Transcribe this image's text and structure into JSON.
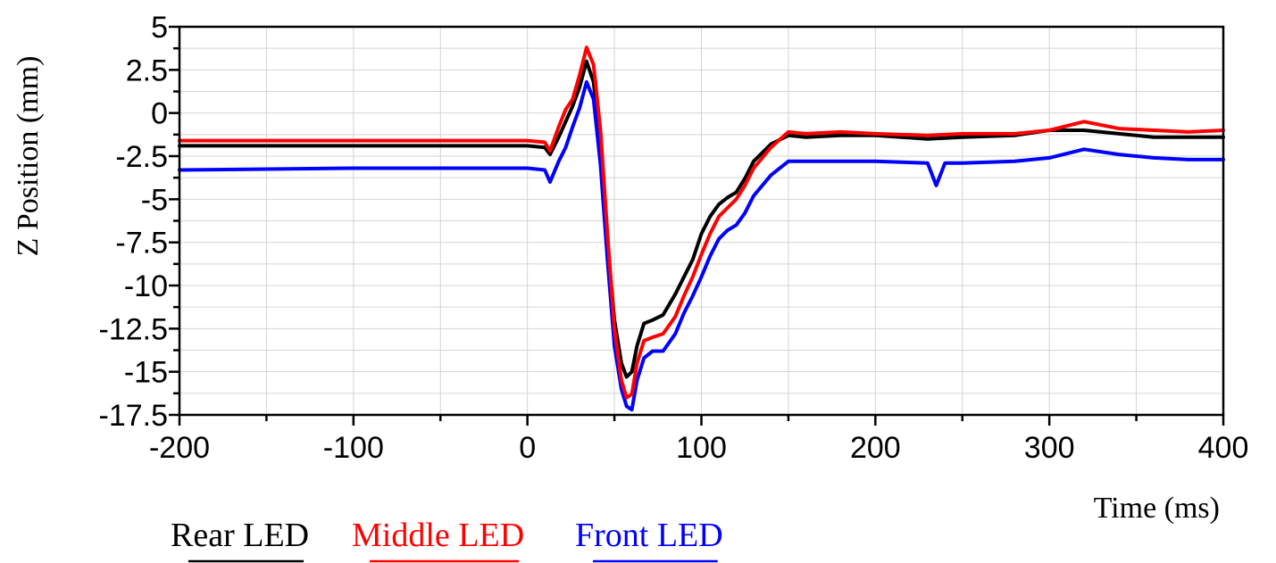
{
  "chart_data": {
    "type": "line",
    "title": "",
    "xlabel": "Time (ms)",
    "ylabel": "Z Position (mm)",
    "xlim": [
      -200,
      400
    ],
    "ylim": [
      -17.5,
      5
    ],
    "x_ticks": [
      -200,
      -100,
      0,
      100,
      200,
      300,
      400
    ],
    "y_ticks": [
      5,
      2.5,
      0,
      -2.5,
      -5,
      -7.5,
      -10,
      -12.5,
      -15,
      -17.5
    ],
    "x_tick_labels": [
      "-200",
      "-100",
      "0",
      "100",
      "200",
      "300",
      "400"
    ],
    "y_tick_labels": [
      "5",
      "2.5",
      "0",
      "-2.5",
      "-5",
      "-7.5",
      "-10",
      "-12.5",
      "-15",
      "-17.5"
    ],
    "grid": true,
    "legend_position": "bottom-left",
    "series": [
      {
        "name": "Rear LED",
        "color": "#000000",
        "x": [
          -200,
          -100,
          0,
          10,
          13,
          18,
          22,
          26,
          30,
          34,
          38,
          42,
          46,
          50,
          54,
          57,
          60,
          63,
          67,
          72,
          78,
          85,
          90,
          95,
          100,
          105,
          110,
          115,
          120,
          125,
          130,
          140,
          150,
          160,
          180,
          200,
          230,
          250,
          280,
          300,
          320,
          340,
          360,
          380,
          400
        ],
        "y": [
          -1.9,
          -1.9,
          -1.9,
          -2.0,
          -2.4,
          -1.4,
          -0.5,
          0.4,
          1.5,
          3.0,
          1.8,
          -2.0,
          -7.5,
          -12.0,
          -14.5,
          -15.3,
          -15.0,
          -13.5,
          -12.2,
          -12.0,
          -11.7,
          -10.5,
          -9.5,
          -8.5,
          -7.0,
          -6.0,
          -5.3,
          -4.9,
          -4.6,
          -3.8,
          -2.8,
          -1.8,
          -1.3,
          -1.4,
          -1.3,
          -1.3,
          -1.5,
          -1.4,
          -1.3,
          -1.0,
          -1.0,
          -1.2,
          -1.4,
          -1.4,
          -1.4
        ]
      },
      {
        "name": "Middle LED",
        "color": "#ff0000",
        "x": [
          -200,
          -100,
          0,
          10,
          13,
          18,
          22,
          26,
          30,
          34,
          38,
          42,
          46,
          50,
          54,
          57,
          60,
          63,
          67,
          72,
          78,
          85,
          90,
          95,
          100,
          105,
          110,
          115,
          120,
          125,
          130,
          140,
          150,
          160,
          180,
          200,
          230,
          250,
          280,
          300,
          320,
          340,
          360,
          380,
          400
        ],
        "y": [
          -1.6,
          -1.6,
          -1.6,
          -1.7,
          -2.2,
          -0.8,
          0.2,
          0.8,
          2.2,
          3.8,
          2.8,
          -1.0,
          -7.0,
          -12.5,
          -15.5,
          -16.5,
          -16.3,
          -14.5,
          -13.2,
          -13.0,
          -12.8,
          -11.8,
          -10.6,
          -9.5,
          -8.2,
          -7.0,
          -6.0,
          -5.5,
          -5.0,
          -4.2,
          -3.2,
          -2.0,
          -1.1,
          -1.2,
          -1.1,
          -1.2,
          -1.3,
          -1.2,
          -1.2,
          -1.0,
          -0.5,
          -0.9,
          -1.0,
          -1.1,
          -1.0
        ]
      },
      {
        "name": "Front LED",
        "color": "#0000ff",
        "x": [
          -200,
          -100,
          0,
          10,
          13,
          18,
          22,
          26,
          30,
          34,
          38,
          42,
          46,
          50,
          54,
          57,
          60,
          63,
          67,
          72,
          78,
          85,
          90,
          95,
          100,
          105,
          110,
          115,
          120,
          125,
          130,
          140,
          150,
          160,
          180,
          200,
          230,
          235,
          240,
          250,
          280,
          300,
          320,
          340,
          360,
          380,
          400
        ],
        "y": [
          -3.3,
          -3.2,
          -3.2,
          -3.3,
          -4.0,
          -2.8,
          -2.0,
          -0.8,
          0.3,
          1.8,
          0.8,
          -3.0,
          -8.5,
          -13.5,
          -16.0,
          -17.0,
          -17.2,
          -15.5,
          -14.2,
          -13.8,
          -13.8,
          -12.8,
          -11.6,
          -10.6,
          -9.5,
          -8.3,
          -7.3,
          -6.8,
          -6.5,
          -5.8,
          -4.8,
          -3.6,
          -2.8,
          -2.8,
          -2.8,
          -2.8,
          -2.9,
          -4.2,
          -2.9,
          -2.9,
          -2.8,
          -2.6,
          -2.1,
          -2.4,
          -2.6,
          -2.7,
          -2.7
        ]
      }
    ]
  }
}
